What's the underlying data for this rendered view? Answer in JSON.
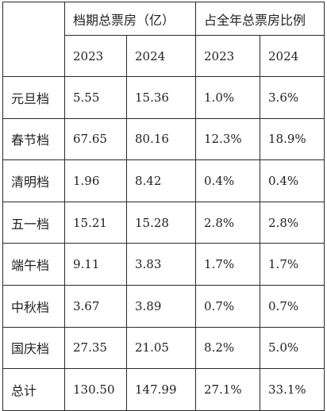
{
  "table": {
    "groups": [
      "档期总票房（亿）",
      "占全年总票房比例"
    ],
    "years": [
      "2023",
      "2024",
      "2023",
      "2024"
    ],
    "rows": [
      {
        "label": "元旦档",
        "cells": [
          "5.55",
          "15.36",
          "1.0%",
          "3.6%"
        ]
      },
      {
        "label": "春节档",
        "cells": [
          "67.65",
          "80.16",
          "12.3%",
          "18.9%"
        ]
      },
      {
        "label": "清明档",
        "cells": [
          "1.96",
          "8.42",
          "0.4%",
          "0.4%"
        ]
      },
      {
        "label": "五一档",
        "cells": [
          "15.21",
          "15.28",
          "2.8%",
          "2.8%"
        ]
      },
      {
        "label": "端午档",
        "cells": [
          "9.11",
          "3.83",
          "1.7%",
          "1.7%"
        ]
      },
      {
        "label": "中秋档",
        "cells": [
          "3.67",
          "3.89",
          "0.7%",
          "0.7%"
        ]
      },
      {
        "label": "国庆档",
        "cells": [
          "27.35",
          "21.05",
          "8.2%",
          "5.0%"
        ]
      },
      {
        "label": "总计",
        "cells": [
          "130.50",
          "147.99",
          "27.1%",
          "33.1%"
        ]
      }
    ]
  }
}
